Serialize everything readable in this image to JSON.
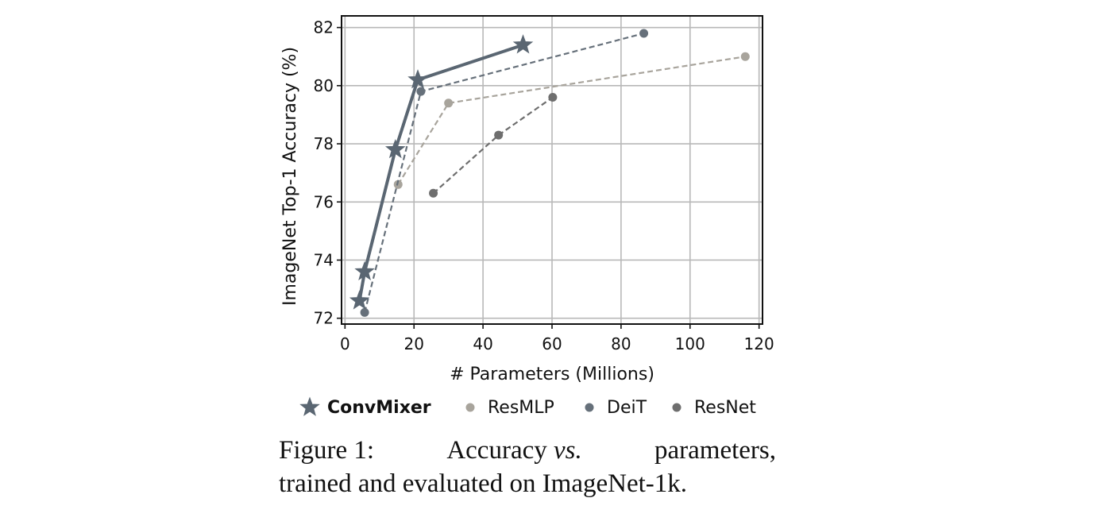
{
  "chart_data": {
    "type": "line",
    "xlabel": "# Parameters (Millions)",
    "ylabel": "ImageNet Top-1 Accuracy (%)",
    "xlim": [
      -1,
      121
    ],
    "ylim": [
      71.8,
      82.4
    ],
    "xticks": [
      "0",
      "20",
      "40",
      "60",
      "80",
      "100",
      "120"
    ],
    "yticks": [
      "72",
      "74",
      "76",
      "78",
      "80",
      "82"
    ],
    "xtick_values": [
      0,
      20,
      40,
      60,
      80,
      100,
      120
    ],
    "ytick_values": [
      72,
      74,
      76,
      78,
      80,
      82
    ],
    "grid": true,
    "legend_position": "below",
    "series": [
      {
        "name": "ConvMixer",
        "marker": "star",
        "line": "solid",
        "bold": true,
        "color": "#5a6672",
        "points": [
          [
            4.2,
            72.6
          ],
          [
            5.7,
            73.6
          ],
          [
            14.6,
            77.8
          ],
          [
            21.1,
            80.2
          ],
          [
            51.6,
            81.4
          ]
        ]
      },
      {
        "name": "ResMLP",
        "marker": "circle",
        "line": "dashed",
        "bold": false,
        "color": "#a8a49c",
        "points": [
          [
            15.4,
            76.6
          ],
          [
            30,
            79.4
          ],
          [
            116,
            81.0
          ]
        ]
      },
      {
        "name": "DeiT",
        "marker": "circle",
        "line": "dashed",
        "bold": false,
        "color": "#66707a",
        "points": [
          [
            5.7,
            72.2
          ],
          [
            22,
            79.8
          ],
          [
            86.6,
            81.8
          ]
        ]
      },
      {
        "name": "ResNet",
        "marker": "circle",
        "line": "dashed",
        "bold": false,
        "color": "#6e6e6e",
        "points": [
          [
            25.6,
            76.3
          ],
          [
            44.5,
            78.3
          ],
          [
            60.2,
            79.6
          ]
        ]
      }
    ]
  },
  "caption": {
    "label": "Figure 1:",
    "text_a": "Accuracy",
    "text_vs": "vs.",
    "text_b": "parameters,",
    "line2": "trained and evaluated on ImageNet-1k."
  }
}
